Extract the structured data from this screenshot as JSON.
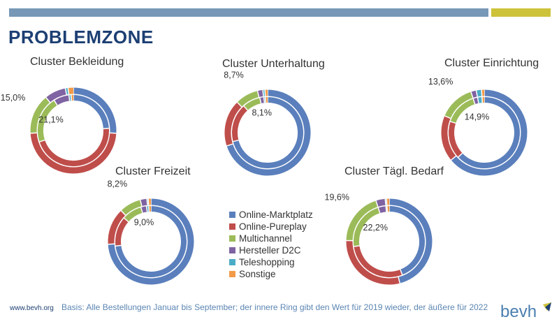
{
  "header": {
    "title": "PROBLEMZONE"
  },
  "colors": {
    "bar_blue": "#7697b6",
    "bar_yellow": "#cdc33a",
    "title": "#1c3f73",
    "footer_note": "#5b86b3",
    "logo_text": "#4a7fb0"
  },
  "legend": {
    "items": [
      {
        "label": "Online-Marktplatz",
        "color": "#5a7fbc"
      },
      {
        "label": "Online-Pureplay",
        "color": "#bf4e4b"
      },
      {
        "label": "Multichannel",
        "color": "#9bbb59"
      },
      {
        "label": "Hersteller D2C",
        "color": "#7f63a2"
      },
      {
        "label": "Teleshopping",
        "color": "#4bacc6"
      },
      {
        "label": "Sonstige",
        "color": "#f39a48"
      }
    ]
  },
  "chart_data": [
    {
      "type": "donut",
      "title": "Cluster Bekleidung",
      "categories": [
        "Online-Marktplatz",
        "Online-Pureplay",
        "Multichannel",
        "Hersteller D2C",
        "Teleshopping",
        "Sonstige"
      ],
      "series": [
        {
          "ring": "outer",
          "values": [
            26.0,
            48.0,
            15.0,
            8.0,
            1.0,
            2.0
          ],
          "labeled": {
            "Multichannel": "15,0%"
          }
        },
        {
          "ring": "inner",
          "values": [
            24.0,
            45.9,
            21.1,
            7.0,
            1.0,
            1.0
          ],
          "labeled": {
            "Multichannel": "21,1%"
          }
        }
      ]
    },
    {
      "type": "donut",
      "title": "Cluster Unterhaltung",
      "categories": [
        "Online-Marktplatz",
        "Online-Pureplay",
        "Multichannel",
        "Hersteller D2C",
        "Teleshopping",
        "Sonstige"
      ],
      "series": [
        {
          "ring": "outer",
          "values": [
            70.0,
            17.5,
            8.7,
            2.0,
            0.8,
            1.0
          ],
          "labeled": {
            "Multichannel": "8,7%"
          }
        },
        {
          "ring": "inner",
          "values": [
            71.0,
            17.4,
            8.1,
            1.8,
            0.7,
            1.0
          ],
          "labeled": {
            "Multichannel": "8,1%"
          }
        }
      ]
    },
    {
      "type": "donut",
      "title": "Cluster Einrichtung",
      "categories": [
        "Online-Marktplatz",
        "Online-Pureplay",
        "Multichannel",
        "Hersteller D2C",
        "Teleshopping",
        "Sonstige"
      ],
      "series": [
        {
          "ring": "outer",
          "values": [
            64.0,
            17.4,
            13.6,
            2.0,
            2.0,
            1.0
          ],
          "labeled": {
            "Multichannel": "13,6%"
          }
        },
        {
          "ring": "inner",
          "values": [
            63.0,
            17.1,
            14.9,
            2.0,
            2.0,
            1.0
          ],
          "labeled": {
            "Multichannel": "14,9%"
          }
        }
      ]
    },
    {
      "type": "donut",
      "title": "Cluster Freizeit",
      "categories": [
        "Online-Marktplatz",
        "Online-Pureplay",
        "Multichannel",
        "Hersteller D2C",
        "Teleshopping",
        "Sonstige"
      ],
      "series": [
        {
          "ring": "outer",
          "values": [
            74.0,
            13.8,
            8.2,
            2.5,
            0.5,
            1.0
          ],
          "labeled": {
            "Multichannel": "8,2%"
          }
        },
        {
          "ring": "inner",
          "values": [
            73.0,
            13.5,
            9.0,
            2.5,
            1.0,
            1.0
          ],
          "labeled": {
            "Multichannel": "9,0%"
          }
        }
      ]
    },
    {
      "type": "donut",
      "title": "Cluster Tägl. Bedarf",
      "categories": [
        "Online-Marktplatz",
        "Online-Pureplay",
        "Multichannel",
        "Hersteller D2C",
        "Teleshopping",
        "Sonstige"
      ],
      "series": [
        {
          "ring": "outer",
          "values": [
            46.0,
            29.4,
            19.6,
            3.5,
            0.5,
            1.0
          ],
          "labeled": {
            "Multichannel": "19,6%"
          }
        },
        {
          "ring": "inner",
          "values": [
            44.0,
            28.8,
            22.2,
            3.5,
            0.5,
            1.0
          ],
          "labeled": {
            "Multichannel": "22,2%"
          }
        }
      ]
    }
  ],
  "footer": {
    "url": "www.bevh.org",
    "note": "Basis: Alle Bestellungen Januar bis September; der innere Ring gibt den Wert für 2019 wieder, der äußere für 2022",
    "logo_text": "bevh"
  }
}
